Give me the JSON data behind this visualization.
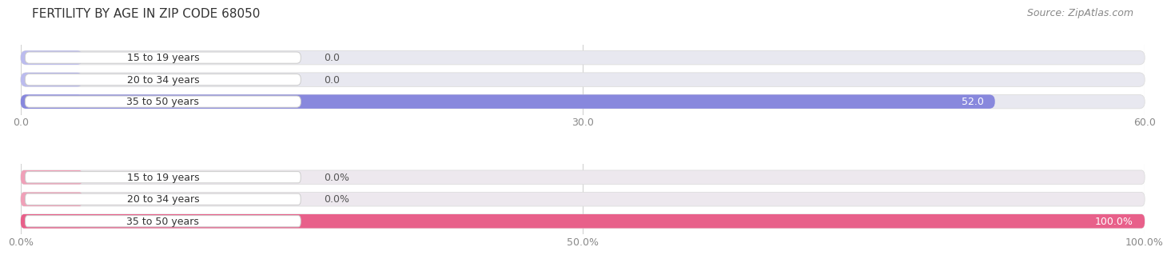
{
  "title": "FERTILITY BY AGE IN ZIP CODE 68050",
  "source": "Source: ZipAtlas.com",
  "top_chart": {
    "categories": [
      "15 to 19 years",
      "20 to 34 years",
      "35 to 50 years"
    ],
    "values": [
      0.0,
      0.0,
      52.0
    ],
    "xlim": [
      0,
      60
    ],
    "xticks": [
      0.0,
      30.0,
      60.0
    ],
    "xtick_labels": [
      "0.0",
      "30.0",
      "60.0"
    ],
    "bar_color": "#8888dd",
    "bar_color_light": "#bbbbee",
    "bg_color": "#f0f0f0",
    "bar_bg_color": "#e8e8f0"
  },
  "bottom_chart": {
    "categories": [
      "15 to 19 years",
      "20 to 34 years",
      "35 to 50 years"
    ],
    "values": [
      0.0,
      0.0,
      100.0
    ],
    "xlim": [
      0,
      100
    ],
    "xticks": [
      0.0,
      50.0,
      100.0
    ],
    "xtick_labels": [
      "0.0%",
      "50.0%",
      "100.0%"
    ],
    "bar_color": "#e8608a",
    "bar_color_light": "#f0a0b8",
    "bg_color": "#f0f0f0",
    "bar_bg_color": "#ede8ee"
  },
  "label_fontsize": 9,
  "value_fontsize": 9,
  "title_fontsize": 11,
  "source_fontsize": 9,
  "bar_height": 0.62,
  "label_color": "#333333",
  "value_color_inside": "#ffffff",
  "value_color_outside": "#555555",
  "tick_color": "#888888",
  "grid_color": "#cccccc",
  "label_box_color": "#ffffff",
  "label_box_edge_color": "#cccccc"
}
